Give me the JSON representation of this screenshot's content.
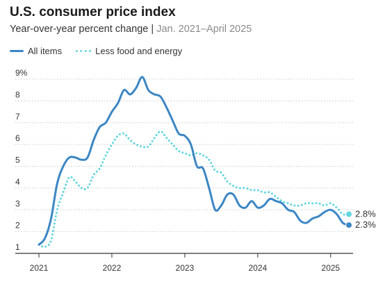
{
  "chart_data": {
    "type": "line",
    "title": "U.S. consumer price index",
    "subtitle_main": "Year-over-year percent change",
    "subtitle_sep": " | ",
    "subtitle_range": "Jan. 2021–April 2025",
    "y_ticks": [
      "1",
      "2",
      "3",
      "4",
      "5",
      "6",
      "7",
      "8",
      "9%"
    ],
    "ylim": [
      1,
      9
    ],
    "x_ticks": [
      "2021",
      "2022",
      "2023",
      "2024",
      "2025"
    ],
    "xlim": [
      "2021-01",
      "2025-04"
    ],
    "grid": "horizontal",
    "legend_placement": "top-left",
    "x": [
      "2021-01",
      "2021-02",
      "2021-03",
      "2021-04",
      "2021-05",
      "2021-06",
      "2021-07",
      "2021-08",
      "2021-09",
      "2021-10",
      "2021-11",
      "2021-12",
      "2022-01",
      "2022-02",
      "2022-03",
      "2022-04",
      "2022-05",
      "2022-06",
      "2022-07",
      "2022-08",
      "2022-09",
      "2022-10",
      "2022-11",
      "2022-12",
      "2023-01",
      "2023-02",
      "2023-03",
      "2023-04",
      "2023-05",
      "2023-06",
      "2023-07",
      "2023-08",
      "2023-09",
      "2023-10",
      "2023-11",
      "2023-12",
      "2024-01",
      "2024-02",
      "2024-03",
      "2024-04",
      "2024-05",
      "2024-06",
      "2024-07",
      "2024-08",
      "2024-09",
      "2024-10",
      "2024-11",
      "2024-12",
      "2025-01",
      "2025-02",
      "2025-03",
      "2025-04"
    ],
    "series": [
      {
        "name": "All items",
        "color": "#3b86c4",
        "style": "solid",
        "end_label": "2.3%",
        "values": [
          1.4,
          1.7,
          2.6,
          4.2,
          5.0,
          5.4,
          5.4,
          5.3,
          5.4,
          6.2,
          6.8,
          7.0,
          7.5,
          7.9,
          8.5,
          8.3,
          8.6,
          9.1,
          8.5,
          8.3,
          8.2,
          7.7,
          7.1,
          6.5,
          6.4,
          6.0,
          5.0,
          4.9,
          4.0,
          3.0,
          3.2,
          3.7,
          3.7,
          3.2,
          3.1,
          3.4,
          3.1,
          3.2,
          3.5,
          3.4,
          3.3,
          3.0,
          2.9,
          2.5,
          2.4,
          2.6,
          2.7,
          2.9,
          3.0,
          2.8,
          2.4,
          2.3
        ]
      },
      {
        "name": "Less food and energy",
        "color": "#64d6df",
        "style": "dotted",
        "end_label": "2.8%",
        "values": [
          1.4,
          1.3,
          1.6,
          3.0,
          3.8,
          4.5,
          4.3,
          4.0,
          4.0,
          4.6,
          4.9,
          5.5,
          6.0,
          6.4,
          6.5,
          6.2,
          6.0,
          5.9,
          5.9,
          6.3,
          6.6,
          6.3,
          6.0,
          5.7,
          5.6,
          5.5,
          5.6,
          5.5,
          5.3,
          4.8,
          4.7,
          4.3,
          4.1,
          4.0,
          4.0,
          3.9,
          3.9,
          3.8,
          3.8,
          3.6,
          3.4,
          3.3,
          3.2,
          3.2,
          3.3,
          3.3,
          3.3,
          3.2,
          3.3,
          3.1,
          2.8,
          2.8
        ]
      }
    ]
  }
}
